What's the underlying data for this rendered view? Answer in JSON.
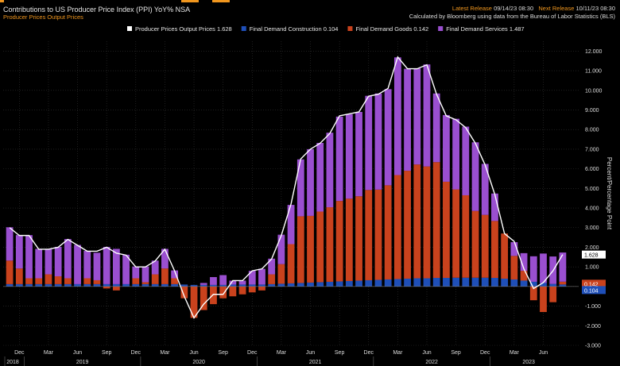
{
  "header": {
    "title": "Contributions to US Producer Price Index (PPI) YoY% NSA",
    "subtitle": "Producer Prices Output Prices",
    "latest_label": "Latest Release",
    "latest_value": "09/14/23 08:30",
    "next_label": "Next Release",
    "next_value": "10/11/23 08:30",
    "calculated_by": "Calculated by Bloomberg using data from the Bureau of Labor Statistics (BLS)"
  },
  "colors": {
    "background": "#000000",
    "services": "#9a4fd0",
    "goods": "#c9421d",
    "construction": "#1f4fb8",
    "line": "#ffffff",
    "grid": "#333333",
    "accent": "#f0961e"
  },
  "chart_data": {
    "type": "bar",
    "stacked": true,
    "grid": true,
    "legend_position": "top",
    "ylabel": "Percent/Percentage Point",
    "ylim": [
      -3,
      12.5
    ],
    "y_ticks": [
      "-3.000",
      "-2.000",
      "-1.000",
      "0.000",
      "1.000",
      "2.000",
      "3.000",
      "4.000",
      "5.000",
      "6.000",
      "7.000",
      "8.000",
      "9.000",
      "10.000",
      "11.000",
      "12.000"
    ],
    "months_labels": [
      "Dec",
      "Mar",
      "Jun",
      "Sep",
      "Dec",
      "Mar",
      "Jun",
      "Sep",
      "Dec",
      "Mar",
      "Jun",
      "Sep",
      "Dec",
      "Mar",
      "Jun",
      "Sep",
      "Dec",
      "Mar",
      "Jun",
      "Sep",
      "Dec",
      "Mar",
      "Jun"
    ],
    "year_labels": [
      "2018",
      "2019",
      "2020",
      "2021",
      "2022",
      "2023"
    ],
    "x": [
      "2018-11",
      "2018-12",
      "2019-01",
      "2019-02",
      "2019-03",
      "2019-04",
      "2019-05",
      "2019-06",
      "2019-07",
      "2019-08",
      "2019-09",
      "2019-10",
      "2019-11",
      "2019-12",
      "2020-01",
      "2020-02",
      "2020-03",
      "2020-04",
      "2020-05",
      "2020-06",
      "2020-07",
      "2020-08",
      "2020-09",
      "2020-10",
      "2020-11",
      "2020-12",
      "2021-01",
      "2021-02",
      "2021-03",
      "2021-04",
      "2021-05",
      "2021-06",
      "2021-07",
      "2021-08",
      "2021-09",
      "2021-10",
      "2021-11",
      "2021-12",
      "2022-01",
      "2022-02",
      "2022-03",
      "2022-04",
      "2022-05",
      "2022-06",
      "2022-07",
      "2022-08",
      "2022-09",
      "2022-10",
      "2022-11",
      "2022-12",
      "2023-01",
      "2023-02",
      "2023-03",
      "2023-04",
      "2023-05",
      "2023-06",
      "2023-07",
      "2023-08"
    ],
    "series": [
      {
        "name": "Producer Prices Output Prices",
        "latest": "1.628",
        "type": "line",
        "values": [
          3.0,
          2.6,
          2.6,
          1.9,
          1.9,
          2.0,
          2.4,
          2.1,
          1.8,
          1.8,
          2.0,
          1.7,
          1.6,
          1.0,
          1.0,
          1.3,
          1.9,
          0.8,
          -0.5,
          -1.6,
          -0.9,
          -0.4,
          -0.4,
          0.3,
          0.3,
          0.8,
          0.9,
          1.4,
          2.6,
          4.2,
          6.5,
          7.0,
          7.3,
          7.8,
          8.7,
          8.8,
          8.9,
          9.7,
          9.8,
          10.1,
          11.7,
          11.1,
          11.1,
          11.3,
          9.8,
          8.7,
          8.5,
          8.1,
          7.3,
          6.2,
          4.7,
          2.7,
          2.3,
          0.9,
          -0.1,
          0.2,
          0.8,
          1.628
        ]
      },
      {
        "name": "Final Demand Construction",
        "latest": "0.104",
        "values": [
          0.12,
          0.12,
          0.12,
          0.12,
          0.12,
          0.12,
          0.12,
          0.12,
          0.12,
          0.12,
          0.12,
          0.12,
          0.12,
          0.12,
          0.12,
          0.12,
          0.12,
          0.12,
          0.1,
          0.08,
          0.08,
          0.08,
          0.08,
          0.1,
          0.1,
          0.1,
          0.1,
          0.12,
          0.14,
          0.16,
          0.18,
          0.2,
          0.22,
          0.24,
          0.26,
          0.28,
          0.3,
          0.32,
          0.34,
          0.36,
          0.38,
          0.4,
          0.42,
          0.42,
          0.44,
          0.44,
          0.45,
          0.45,
          0.45,
          0.45,
          0.44,
          0.4,
          0.36,
          0.3,
          0.24,
          0.18,
          0.13,
          0.104
        ]
      },
      {
        "name": "Final Demand Goods",
        "latest": "0.142",
        "values": [
          1.2,
          0.8,
          0.3,
          0.3,
          0.5,
          0.4,
          0.3,
          0.0,
          0.3,
          0.2,
          -0.1,
          -0.2,
          0.0,
          0.3,
          0.1,
          0.5,
          0.8,
          0.3,
          -0.6,
          -1.6,
          -1.2,
          -0.9,
          -0.6,
          -0.5,
          -0.4,
          -0.3,
          -0.2,
          0.5,
          1.0,
          2.0,
          3.4,
          3.4,
          3.6,
          3.8,
          4.1,
          4.2,
          4.3,
          4.6,
          4.6,
          4.8,
          5.3,
          5.5,
          5.8,
          5.7,
          5.9,
          4.9,
          4.5,
          4.2,
          3.4,
          3.2,
          2.9,
          2.3,
          1.2,
          0.5,
          -0.7,
          -1.3,
          -0.8,
          0.142
        ]
      },
      {
        "name": "Final Demand Services",
        "latest": "1.487",
        "values": [
          1.7,
          1.7,
          2.2,
          1.5,
          1.3,
          1.5,
          2.0,
          2.0,
          1.4,
          1.4,
          1.9,
          1.8,
          1.5,
          0.6,
          0.8,
          0.7,
          1.0,
          0.4,
          0.0,
          0.0,
          0.1,
          0.4,
          0.5,
          0.2,
          0.2,
          0.7,
          0.8,
          0.8,
          1.5,
          2.0,
          2.9,
          3.4,
          3.5,
          3.8,
          4.3,
          4.3,
          4.3,
          4.8,
          4.9,
          4.9,
          6.0,
          5.2,
          4.9,
          5.2,
          3.5,
          3.4,
          3.6,
          3.5,
          3.5,
          2.6,
          1.4,
          0.0,
          0.7,
          0.9,
          1.3,
          1.5,
          1.4,
          1.487
        ]
      }
    ]
  }
}
